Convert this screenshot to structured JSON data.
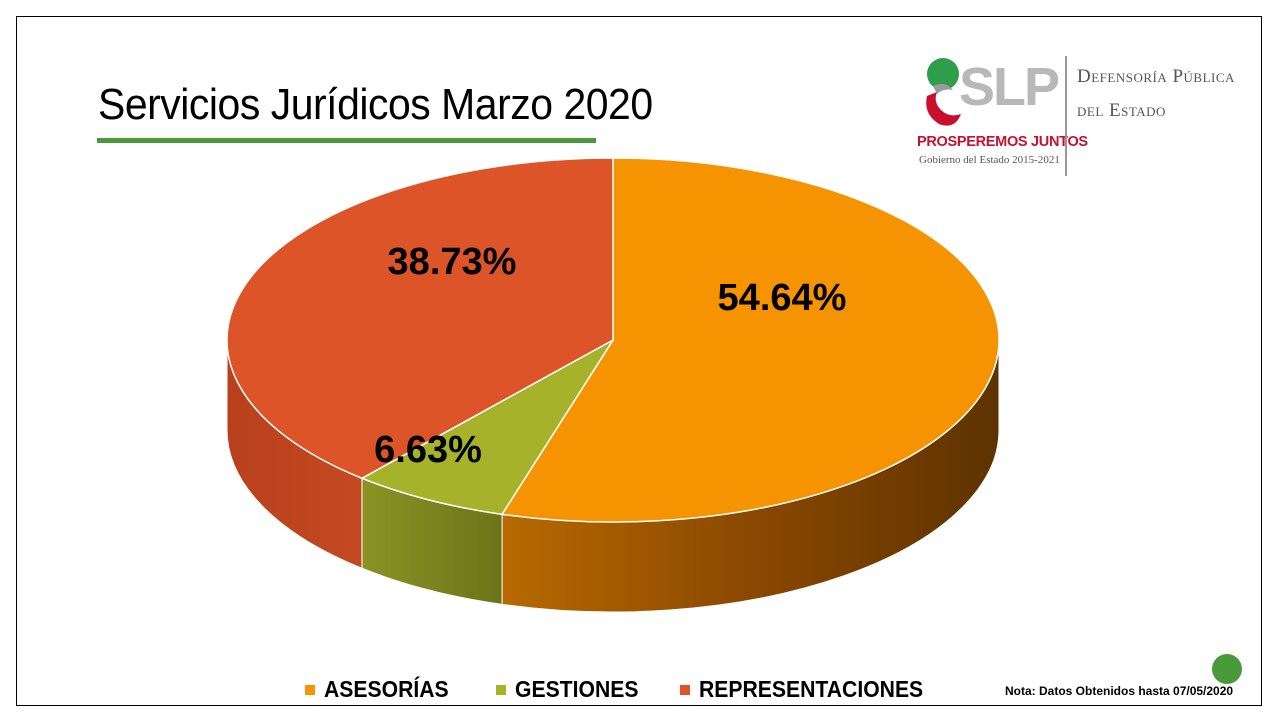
{
  "header": {
    "title": "Servicios Jurídicos Marzo 2020"
  },
  "logo": {
    "wordmark": "SLP",
    "slogan": "PROSPEREMOS JUNTOS",
    "government": "Gobierno del Estado 2015-2021",
    "department_line1": "Defensoría Pública",
    "department_line2": "del Estado"
  },
  "chart_data": {
    "type": "pie",
    "title": "Servicios Jurídicos Marzo 2020",
    "legend_position": "bottom",
    "slices": [
      {
        "name": "ASESORÍAS",
        "value": 54.64,
        "label": "54.64%",
        "color": "#f59300"
      },
      {
        "name": "GESTIONES",
        "value": 6.63,
        "label": "6.63%",
        "color": "#a5b22a"
      },
      {
        "name": "REPRESENTACIONES",
        "value": 38.73,
        "label": "38.73%",
        "color": "#dc5427"
      }
    ]
  },
  "footer": {
    "note": "Nota: Datos Obtenidos hasta 07/05/2020"
  },
  "colors": {
    "accent_green": "#4a9a3c"
  }
}
